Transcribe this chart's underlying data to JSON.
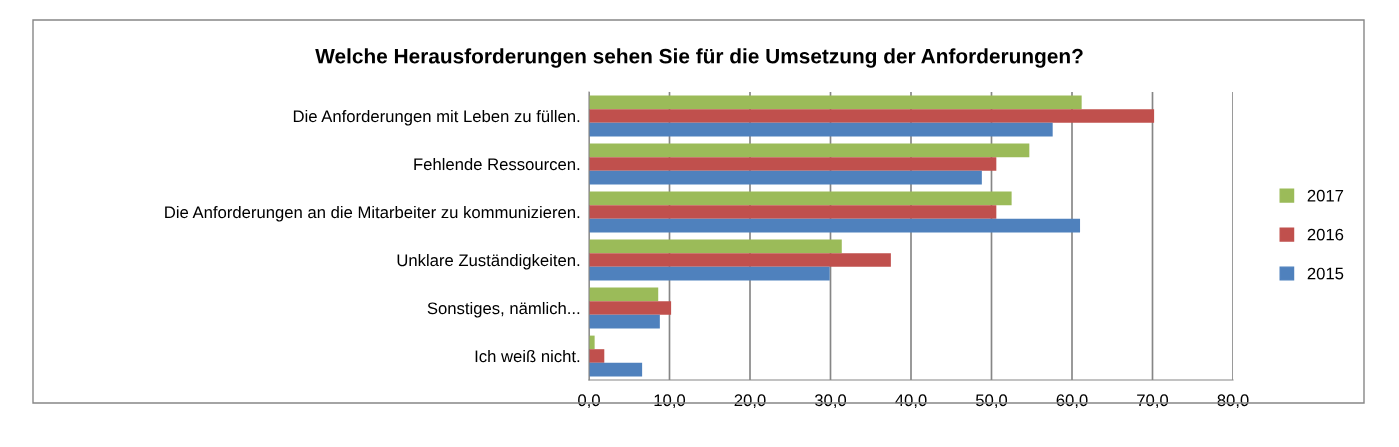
{
  "chart_data": {
    "type": "bar",
    "orientation": "horizontal",
    "title": "Welche Herausforderungen sehen Sie für die Umsetzung der Anforderungen?",
    "categories": [
      "Die Anforderungen mit Leben zu füllen.",
      "Fehlende Ressourcen.",
      "Die Anforderungen an die Mitarbeiter zu kommunizieren.",
      "Unklare Zuständigkeiten.",
      "Sonstiges, nämlich...",
      "Ich weiß nicht."
    ],
    "series": [
      {
        "name": "2017",
        "color": "#9bbb59",
        "values": [
          61.2,
          54.7,
          52.5,
          31.4,
          8.6,
          0.7
        ]
      },
      {
        "name": "2016",
        "color": "#c0504d",
        "values": [
          70.2,
          50.6,
          50.6,
          37.5,
          10.2,
          1.9
        ]
      },
      {
        "name": "2015",
        "color": "#4f81bd",
        "values": [
          57.6,
          48.8,
          61.0,
          29.9,
          8.8,
          6.6
        ]
      }
    ],
    "xlim": [
      0,
      80
    ],
    "xticks": [
      {
        "value": 0,
        "label": "0,0"
      },
      {
        "value": 10,
        "label": "10,0"
      },
      {
        "value": 20,
        "label": "20,0"
      },
      {
        "value": 30,
        "label": "30,0"
      },
      {
        "value": 40,
        "label": "40,0"
      },
      {
        "value": 50,
        "label": "50,0"
      },
      {
        "value": 60,
        "label": "60,0"
      },
      {
        "value": 70,
        "label": "70,0"
      },
      {
        "value": 80,
        "label": "80,0"
      }
    ],
    "grid": "x",
    "legend": "right"
  }
}
